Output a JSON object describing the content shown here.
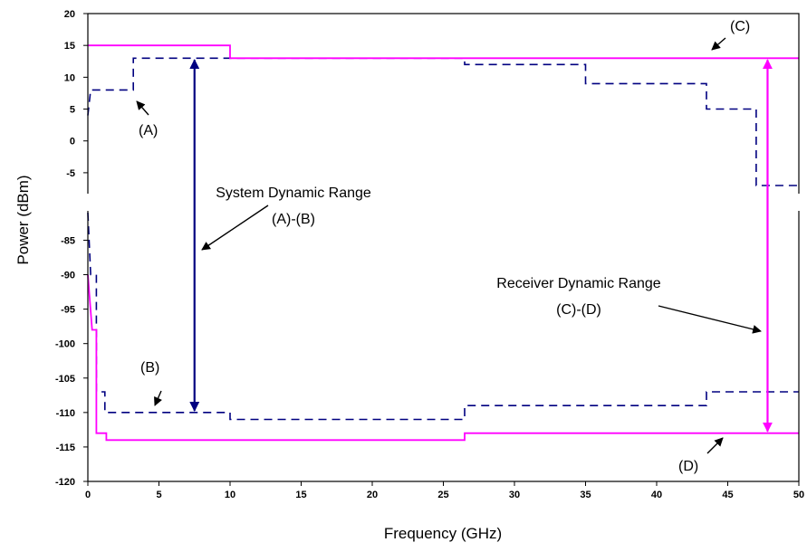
{
  "chart_data": {
    "type": "line",
    "xlabel": "Frequency (GHz)",
    "ylabel": "Power (dBm)",
    "xlim": [
      0,
      50
    ],
    "x_ticks": [
      "0",
      "5",
      "10",
      "15",
      "20",
      "25",
      "30",
      "35",
      "40",
      "45",
      "50"
    ],
    "y_ticks_top": [
      "20",
      "15",
      "10",
      "5",
      "0",
      "-5"
    ],
    "y_ticks_bottom": [
      "-85",
      "-90",
      "-95",
      "-100",
      "-105",
      "-110",
      "-115",
      "-120"
    ],
    "y_axis_note": "broken y-axis: upper panel -8 to 20 dBm, lower panel -120 to -81 dBm",
    "grid": false,
    "legend": "none",
    "colors": {
      "blue": "#000080",
      "pink": "#ff00ff"
    },
    "series": [
      {
        "name": "(A)",
        "style": "dashed",
        "color": "#000080",
        "points": [
          [
            0,
            4
          ],
          [
            0.2,
            8
          ],
          [
            3.2,
            8
          ],
          [
            3.2,
            13
          ],
          [
            26.5,
            13
          ],
          [
            26.5,
            12
          ],
          [
            35,
            12
          ],
          [
            35,
            9
          ],
          [
            43.5,
            9
          ],
          [
            43.5,
            5
          ],
          [
            47,
            5
          ],
          [
            47,
            -7
          ],
          [
            50,
            -7
          ]
        ]
      },
      {
        "name": "(B)",
        "style": "dashed",
        "color": "#000080",
        "points": [
          [
            0,
            -81
          ],
          [
            0.2,
            -90
          ],
          [
            0.6,
            -90
          ],
          [
            0.6,
            -107
          ],
          [
            1.2,
            -107
          ],
          [
            1.2,
            -110
          ],
          [
            10,
            -110
          ],
          [
            10,
            -111
          ],
          [
            26.5,
            -111
          ],
          [
            26.5,
            -109
          ],
          [
            43.5,
            -109
          ],
          [
            43.5,
            -107
          ],
          [
            50,
            -107
          ]
        ]
      },
      {
        "name": "(C)",
        "style": "solid",
        "color": "#ff00ff",
        "points": [
          [
            0,
            15
          ],
          [
            10,
            15
          ],
          [
            10,
            13
          ],
          [
            50,
            13
          ]
        ]
      },
      {
        "name": "(D)",
        "style": "solid",
        "color": "#ff00ff",
        "points": [
          [
            0,
            -90
          ],
          [
            0.3,
            -98
          ],
          [
            0.6,
            -98
          ],
          [
            0.6,
            -113
          ],
          [
            1.3,
            -113
          ],
          [
            1.3,
            -114
          ],
          [
            26.5,
            -114
          ],
          [
            26.5,
            -113
          ],
          [
            50,
            -113
          ]
        ]
      }
    ],
    "annotations": {
      "system_range": {
        "x": 7.5,
        "y_from": 13,
        "y_to": -110
      },
      "receiver_range": {
        "x": 47.8,
        "y_from": 13,
        "y_to": -113
      }
    }
  },
  "labels": {
    "a": "(A)",
    "b": "(B)",
    "c": "(C)",
    "d": "(D)",
    "system_range_line1": "System Dynamic Range",
    "system_range_line2": "(A)-(B)",
    "receiver_range_line1": "Receiver Dynamic Range",
    "receiver_range_line2": "(C)-(D)"
  }
}
